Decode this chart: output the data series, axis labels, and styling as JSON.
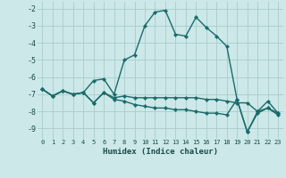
{
  "xlabel": "Humidex (Indice chaleur)",
  "background_color": "#cce8e8",
  "grid_color": "#aacccc",
  "line_color": "#1a6b6b",
  "marker": "D",
  "markersize": 2.2,
  "linewidth": 1.0,
  "xlim": [
    -0.5,
    23.5
  ],
  "ylim": [
    -9.6,
    -1.6
  ],
  "xticks": [
    0,
    1,
    2,
    3,
    4,
    5,
    6,
    7,
    8,
    9,
    10,
    11,
    12,
    13,
    14,
    15,
    16,
    17,
    18,
    19,
    20,
    21,
    22,
    23
  ],
  "yticks": [
    -2,
    -3,
    -4,
    -5,
    -6,
    -7,
    -8,
    -9
  ],
  "curves": [
    [
      -6.7,
      -7.1,
      -6.8,
      -7.0,
      -6.9,
      -6.2,
      -6.1,
      -7.0,
      -5.0,
      -4.7,
      -3.0,
      -2.2,
      -2.1,
      -3.5,
      -3.6,
      -2.5,
      -3.1,
      -3.6,
      -4.2,
      -7.3,
      -9.2,
      -8.0,
      -7.4,
      -8.1
    ],
    [
      -6.7,
      -7.1,
      -6.8,
      -7.0,
      -6.9,
      -7.5,
      -6.9,
      -7.2,
      -7.1,
      -7.2,
      -7.2,
      -7.2,
      -7.2,
      -7.2,
      -7.2,
      -7.2,
      -7.3,
      -7.3,
      -7.4,
      -7.5,
      -7.5,
      -8.0,
      -7.8,
      -8.1
    ],
    [
      -6.7,
      -7.1,
      -6.8,
      -7.0,
      -6.9,
      -7.5,
      -6.9,
      -7.3,
      -7.4,
      -7.6,
      -7.7,
      -7.8,
      -7.8,
      -7.9,
      -7.9,
      -8.0,
      -8.1,
      -8.1,
      -8.2,
      -7.3,
      -9.2,
      -8.1,
      -7.8,
      -8.2
    ]
  ]
}
